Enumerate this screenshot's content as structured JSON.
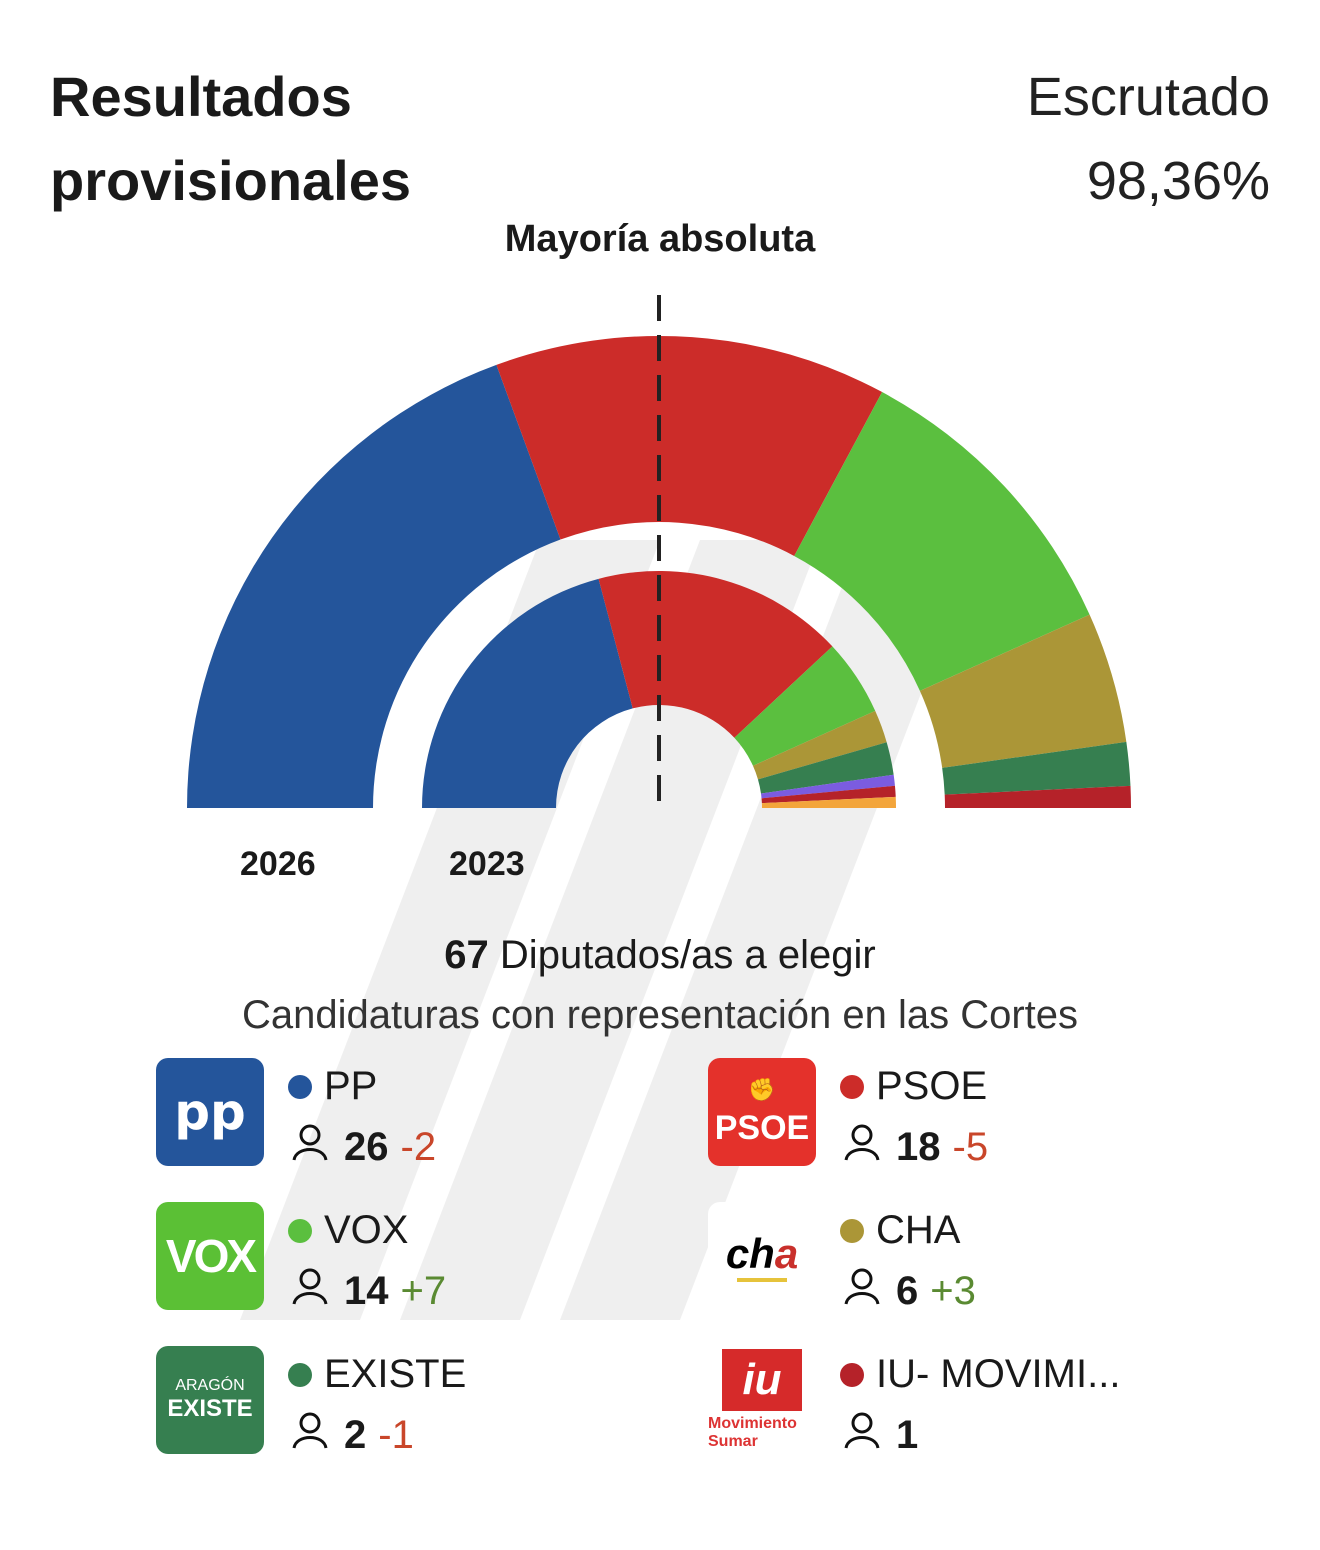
{
  "header": {
    "title": "Resultados provisionales",
    "scrutiny_label": "Escrutado",
    "scrutiny_value": "98,36%"
  },
  "chart_data": {
    "type": "pie",
    "subtype": "hemicycle",
    "annotation": "Mayoría absoluta",
    "total_seats": 67,
    "rings": [
      {
        "label": "2026",
        "slices": [
          {
            "party": "PP",
            "seats": 26,
            "color": "#24559b"
          },
          {
            "party": "PSOE",
            "seats": 18,
            "color": "#cc2c29"
          },
          {
            "party": "VOX",
            "seats": 14,
            "color": "#5bbf3f"
          },
          {
            "party": "CHA",
            "seats": 6,
            "color": "#ab9637"
          },
          {
            "party": "EXISTE",
            "seats": 2,
            "color": "#367f50"
          },
          {
            "party": "IU- MOVIMI...",
            "seats": 1,
            "color": "#b52229"
          }
        ]
      },
      {
        "label": "2023",
        "slices": [
          {
            "party": "PP",
            "seats": 28,
            "color": "#24559b"
          },
          {
            "party": "PSOE",
            "seats": 23,
            "color": "#cc2c29"
          },
          {
            "party": "VOX",
            "seats": 7,
            "color": "#5bbf3f"
          },
          {
            "party": "CHA",
            "seats": 3,
            "color": "#ab9637"
          },
          {
            "party": "EXISTE",
            "seats": 3,
            "color": "#367f50"
          },
          {
            "seats": 1,
            "color": "#7b5ce0"
          },
          {
            "seats": 1,
            "color": "#b52229"
          },
          {
            "seats": 1,
            "color": "#f3a53b"
          }
        ]
      }
    ]
  },
  "summary": {
    "seats": "67",
    "seats_text": "Diputados/as a elegir",
    "subtitle": "Candidaturas con representación en las Cortes"
  },
  "parties": [
    {
      "name": "PP",
      "seats": "26",
      "change": "-2",
      "sign": "neg",
      "color": "#24559b",
      "logo_text": "pp",
      "logo_bg": "#24559b",
      "logo_icon": "pp-logo"
    },
    {
      "name": "PSOE",
      "seats": "18",
      "change": "-5",
      "sign": "neg",
      "color": "#cc2c29",
      "logo_text": "PSOE",
      "logo_bg": "#e4312b",
      "logo_icon": "psoe-logo"
    },
    {
      "name": "VOX",
      "seats": "14",
      "change": "+7",
      "sign": "pos",
      "color": "#5bbf3f",
      "logo_text": "VOX",
      "logo_bg": "#5bc035",
      "logo_icon": "vox-logo"
    },
    {
      "name": "CHA",
      "seats": "6",
      "change": "+3",
      "sign": "pos",
      "color": "#ab9637",
      "logo_text": "cha",
      "logo_bg": "#ffffff",
      "logo_icon": "cha-logo"
    },
    {
      "name": "EXISTE",
      "seats": "2",
      "change": "-1",
      "sign": "neg",
      "color": "#367f50",
      "logo_text": "ARAGÓN EXISTE",
      "logo_bg": "#367f50",
      "logo_icon": "existe-logo"
    },
    {
      "name": "IU- MOVIMI...",
      "seats": "1",
      "change": "",
      "sign": "",
      "color": "#b52229",
      "logo_text": "iu Movimiento Sumar",
      "logo_bg": "#ffffff",
      "logo_icon": "iu-sumar-logo"
    }
  ]
}
